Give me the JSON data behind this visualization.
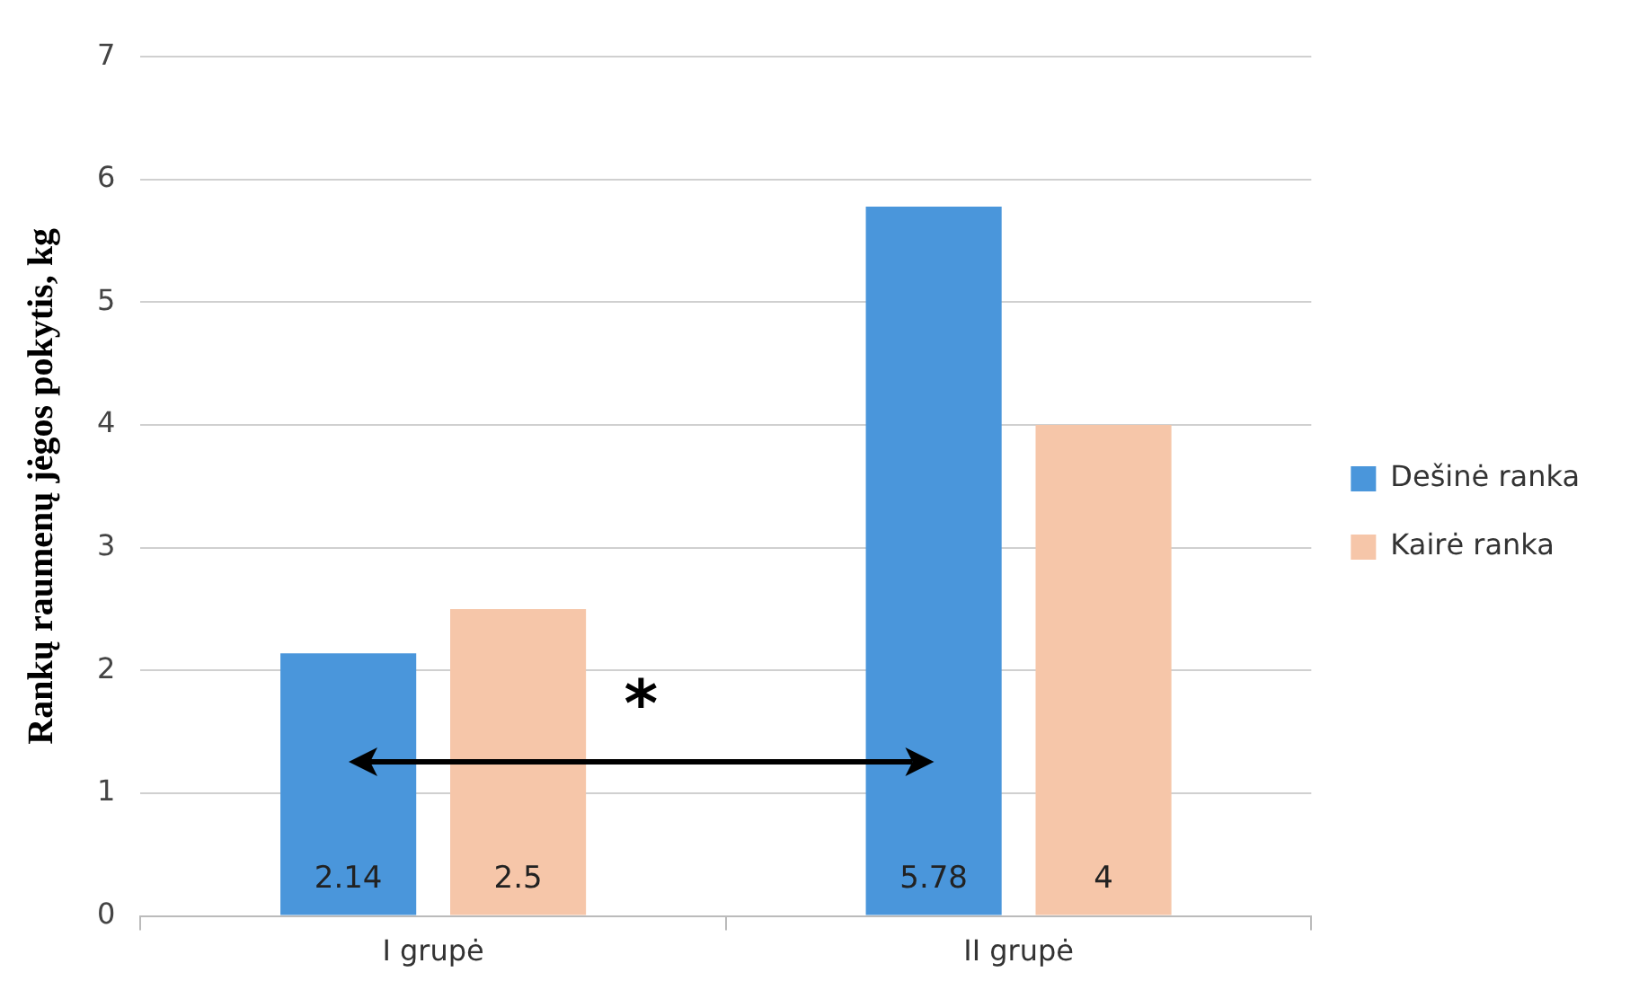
{
  "chart_data": {
    "type": "bar",
    "ylabel": "Rankų raumenų jėgos pokytis, kg",
    "categories": [
      "I grupė",
      "II grupė"
    ],
    "series": [
      {
        "name": "Dešinė ranka",
        "color": "#4a96db",
        "values": [
          2.14,
          5.78
        ]
      },
      {
        "name": "Kairė ranka",
        "color": "#f6c6a9",
        "values": [
          2.5,
          4
        ]
      }
    ],
    "ylim": [
      0,
      7
    ],
    "yticks": [
      0,
      1,
      2,
      3,
      4,
      5,
      6,
      7
    ],
    "grid": "y",
    "legend": "right",
    "data_labels": true,
    "annotations": [
      "*"
    ]
  }
}
